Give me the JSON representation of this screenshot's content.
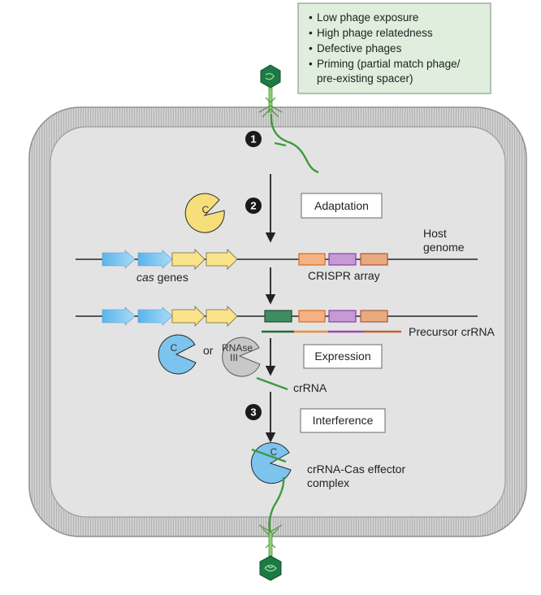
{
  "conditions": {
    "items": [
      "Low phage exposure",
      "High phage relatedness",
      "Defective phages",
      "Priming (partial match phage/",
      "pre-existing spacer)"
    ]
  },
  "steps": {
    "step1": "1",
    "step2": "2",
    "step3": "3"
  },
  "stage_labels": {
    "adaptation": "Adaptation",
    "expression": "Expression",
    "interference": "Interference"
  },
  "labels": {
    "host_genome_line1": "Host",
    "host_genome_line2": "genome",
    "cas_genes_italic": "cas",
    "cas_genes_rest": " genes",
    "crispr_array": "CRISPR array",
    "precursor_crrna": "Precursor crRNA",
    "crrna": "crRNA",
    "or": "or",
    "rnase_line1": "RNAse",
    "rnase_line2": "III",
    "effector_line1": "crRNA-Cas effector",
    "effector_line2": "complex",
    "cas_protein_letter": "C"
  },
  "colors": {
    "cell_fill": "#e3e3e3",
    "membrane": "#a9a9a9",
    "conditions_box": "#dfeedd",
    "phage_head": "#1e7a45",
    "phage_tail": "#8fcf6f",
    "dna_green": "#3d9a3d",
    "cas_blue": "#62b6ea",
    "cas_yellow": "#fbe38b",
    "spacer_orange": "#f4b183",
    "spacer_purple": "#c59ad6",
    "spacer_salmon": "#e9a97f",
    "spacer_new_green": "#3f8b63",
    "protein_yellow": "#f6de7a",
    "protein_blue": "#7cc4ee",
    "protein_gray": "#c8c8c8"
  }
}
